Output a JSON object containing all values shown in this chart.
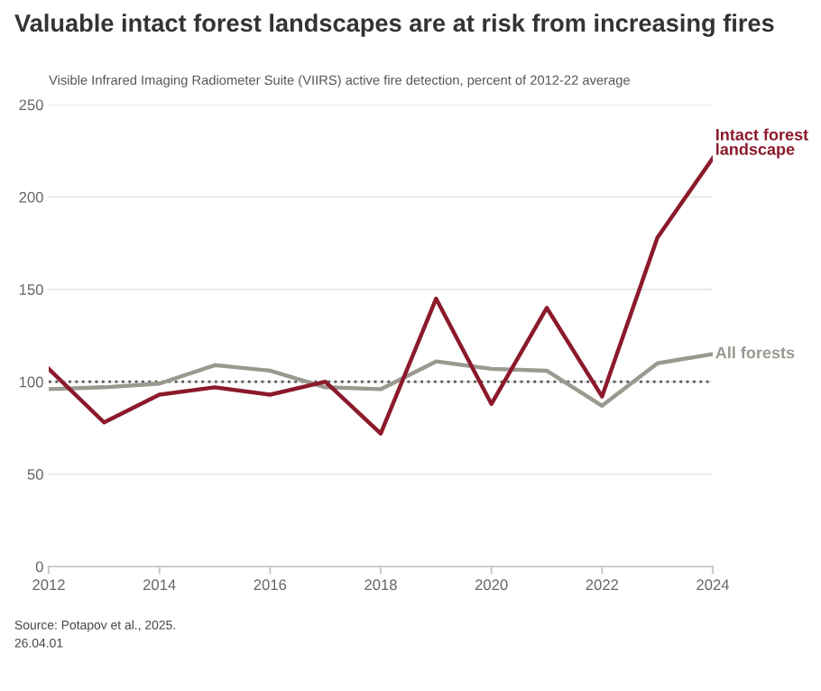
{
  "chart_data": {
    "type": "line",
    "title": "Valuable intact forest landscapes are at risk from increasing fires",
    "subtitle": "Visible Infrared Imaging Radiometer Suite (VIIRS) active fire detection, percent of 2012-22 average",
    "x": [
      2012,
      2013,
      2014,
      2015,
      2016,
      2017,
      2018,
      2019,
      2020,
      2021,
      2022,
      2023,
      2024
    ],
    "series": [
      {
        "name": "All forests",
        "color": "#9b9890",
        "values": [
          96,
          97,
          99,
          109,
          106,
          97,
          96,
          111,
          107,
          106,
          87,
          110,
          115
        ]
      },
      {
        "name": "Intact forest\nlandscape",
        "color": "#8b1a2b",
        "values": [
          107,
          78,
          93,
          97,
          93,
          100,
          72,
          145,
          88,
          140,
          92,
          178,
          221
        ]
      }
    ],
    "xlim": [
      2012,
      2024
    ],
    "xticks": [
      2012,
      2014,
      2016,
      2018,
      2020,
      2022,
      2024
    ],
    "ylim": [
      0,
      250
    ],
    "yticks": [
      0,
      50,
      100,
      150,
      200,
      250
    ],
    "ref_lines": [
      {
        "axis": "y",
        "value": 100,
        "color": "#555555",
        "line_style": "dotted"
      }
    ],
    "grid": "y",
    "legend": false,
    "annotations": [
      "Source: Potapov et al., 2025.",
      "26.04.01"
    ]
  }
}
